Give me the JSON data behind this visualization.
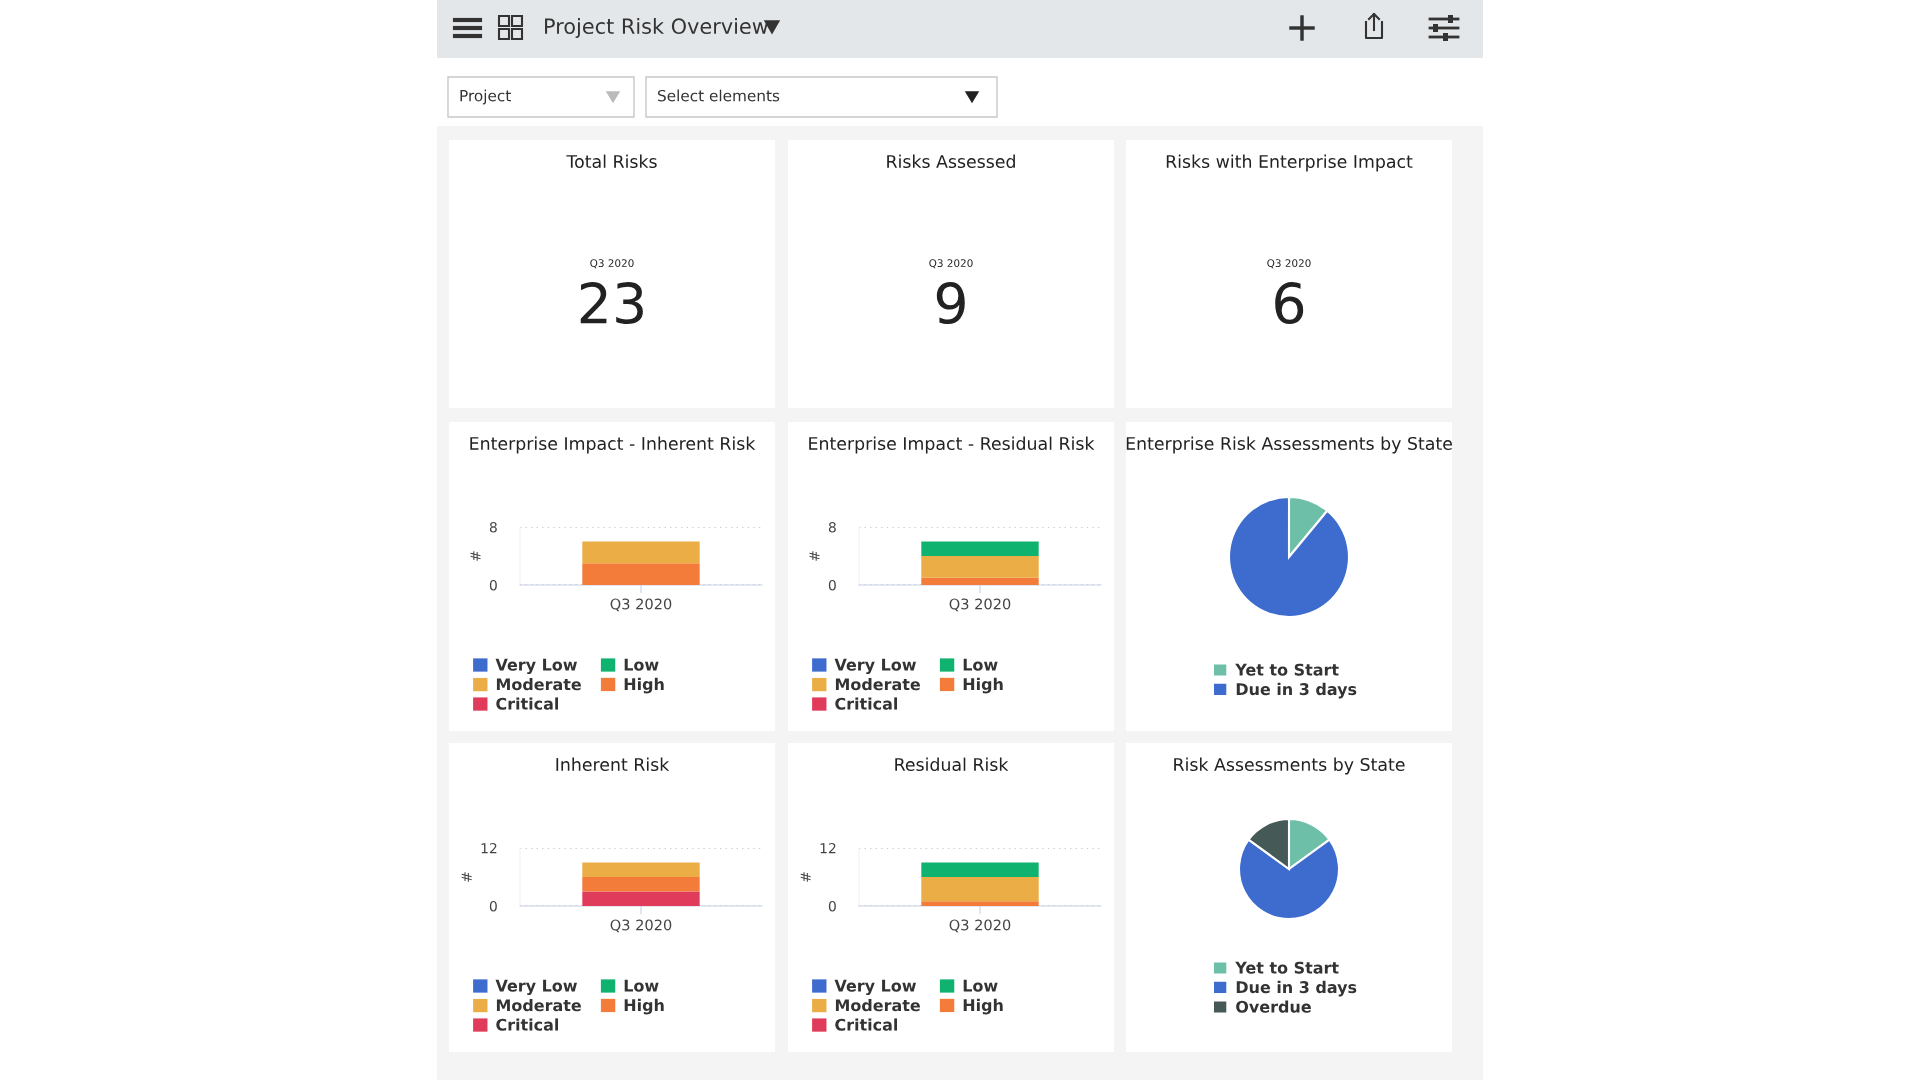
{
  "chart_data": [
    {
      "type": "other",
      "title": "Project Risk Overview",
      "annotations": [
        "Project",
        "Select elements"
      ]
    },
    {
      "type": "other",
      "title": "Total Risks",
      "categories": [
        "Q3 2020"
      ],
      "values": [
        23
      ],
      "data_labels": true
    },
    {
      "type": "other",
      "title": "Risks Assessed",
      "categories": [
        "Q3 2020"
      ],
      "values": [
        9
      ],
      "data_labels": true
    },
    {
      "type": "other",
      "title": "Risks with Enterprise Impact",
      "categories": [
        "Q3 2020"
      ],
      "values": [
        6
      ],
      "data_labels": true
    },
    {
      "type": "bar",
      "title": "Enterprise Impact - Inherent Risk",
      "ylabel": "#",
      "categories": [
        "Q3 2020"
      ],
      "stacked": true,
      "ylim": [
        0,
        8
      ],
      "yticks": [
        0,
        8
      ],
      "grid": "y",
      "legend": "bottom",
      "series": [
        {
          "name": "Critical",
          "color": "#e03b5a",
          "values": [
            null
          ]
        },
        {
          "name": "High",
          "color": "#f37c3a",
          "values": [
            3
          ]
        },
        {
          "name": "Moderate",
          "color": "#ebae46",
          "values": [
            3
          ]
        },
        {
          "name": "Low",
          "color": "#10b26f",
          "values": [
            null
          ]
        },
        {
          "name": "Very Low",
          "color": "#3d6bce",
          "values": [
            null
          ]
        }
      ]
    },
    {
      "type": "bar",
      "title": "Enterprise Impact - Residual Risk",
      "ylabel": "#",
      "categories": [
        "Q3 2020"
      ],
      "stacked": true,
      "ylim": [
        0,
        8
      ],
      "yticks": [
        0,
        8
      ],
      "grid": "y",
      "legend": "bottom",
      "series": [
        {
          "name": "Critical",
          "color": "#e03b5a",
          "values": [
            null
          ]
        },
        {
          "name": "High",
          "color": "#f37c3a",
          "values": [
            1
          ]
        },
        {
          "name": "Moderate",
          "color": "#ebae46",
          "values": [
            3
          ]
        },
        {
          "name": "Low",
          "color": "#10b26f",
          "values": [
            2
          ]
        },
        {
          "name": "Very Low",
          "color": "#3d6bce",
          "values": [
            null
          ]
        }
      ]
    },
    {
      "type": "pie",
      "title": "Enterprise Risk Assessments by State",
      "categories": [
        "Yet to Start",
        "Due in 3 days"
      ],
      "values": [
        11,
        89
      ],
      "colors": [
        "#6dbfa8",
        "#3d6bce"
      ],
      "legend": "bottom"
    },
    {
      "type": "bar",
      "title": "Inherent Risk",
      "ylabel": "#",
      "categories": [
        "Q3 2020"
      ],
      "stacked": true,
      "ylim": [
        0,
        12
      ],
      "yticks": [
        0,
        12
      ],
      "grid": "y",
      "legend": "bottom",
      "series": [
        {
          "name": "Critical",
          "color": "#e03b5a",
          "values": [
            3
          ]
        },
        {
          "name": "High",
          "color": "#f37c3a",
          "values": [
            3
          ]
        },
        {
          "name": "Moderate",
          "color": "#ebae46",
          "values": [
            3
          ]
        },
        {
          "name": "Low",
          "color": "#10b26f",
          "values": [
            null
          ]
        },
        {
          "name": "Very Low",
          "color": "#3d6bce",
          "values": [
            null
          ]
        }
      ]
    },
    {
      "type": "bar",
      "title": "Residual Risk",
      "ylabel": "#",
      "categories": [
        "Q3 2020"
      ],
      "stacked": true,
      "ylim": [
        0,
        12
      ],
      "yticks": [
        0,
        12
      ],
      "grid": "y",
      "legend": "bottom",
      "series": [
        {
          "name": "Critical",
          "color": "#e03b5a",
          "values": [
            null
          ]
        },
        {
          "name": "High",
          "color": "#f37c3a",
          "values": [
            1
          ]
        },
        {
          "name": "Moderate",
          "color": "#ebae46",
          "values": [
            5
          ]
        },
        {
          "name": "Low",
          "color": "#10b26f",
          "values": [
            3
          ]
        },
        {
          "name": "Very Low",
          "color": "#3d6bce",
          "values": [
            null
          ]
        }
      ]
    },
    {
      "type": "pie",
      "title": "Risk Assessments by State",
      "categories": [
        "Yet to Start",
        "Due in 3 days",
        "Overdue"
      ],
      "values": [
        15,
        70,
        15
      ],
      "colors": [
        "#6dbfa8",
        "#3d6bce",
        "#455a57"
      ],
      "legend": "bottom"
    }
  ]
}
